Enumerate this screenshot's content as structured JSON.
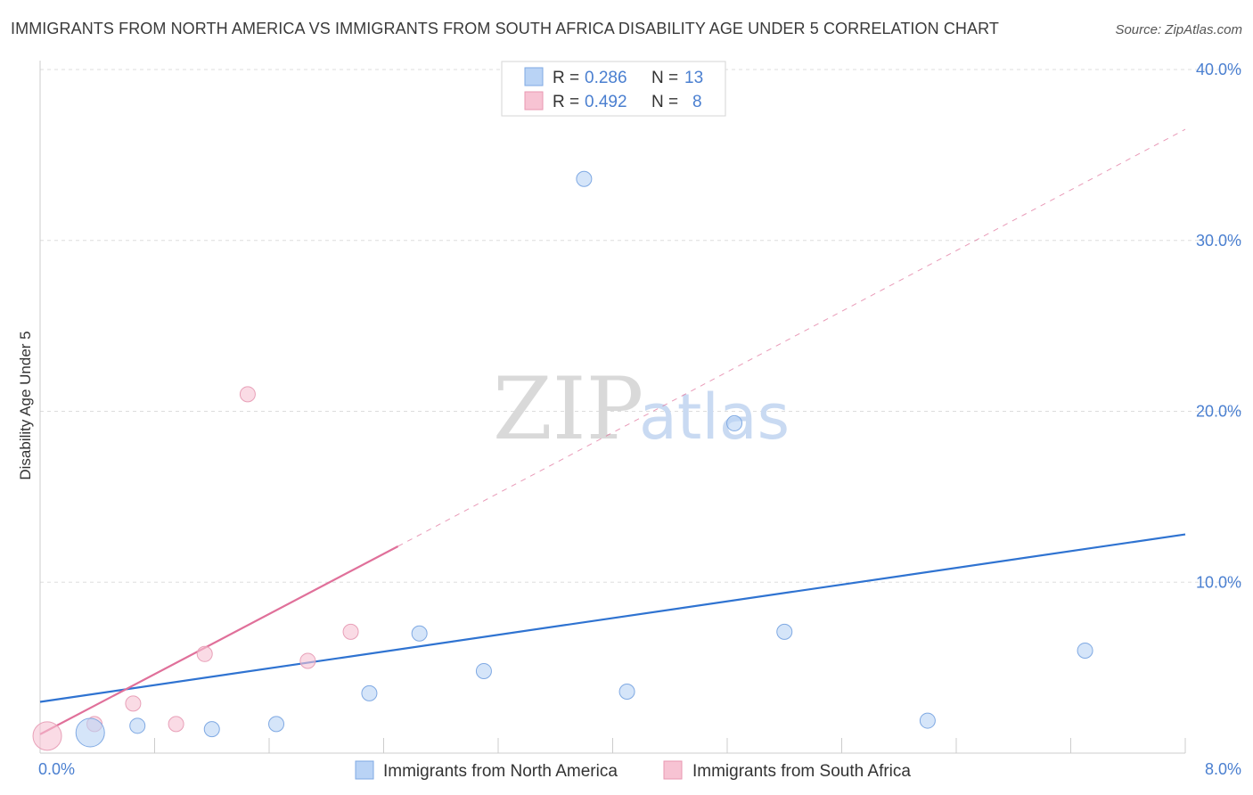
{
  "header": {
    "title": "IMMIGRANTS FROM NORTH AMERICA VS IMMIGRANTS FROM SOUTH AFRICA DISABILITY AGE UNDER 5 CORRELATION CHART",
    "source": "Source: ZipAtlas.com"
  },
  "watermark": {
    "zip": "ZIP",
    "atlas": "atlas"
  },
  "legend": {
    "r_label": "R =",
    "n_label": "N =",
    "rows": [
      {
        "r": "0.286",
        "n": "13"
      },
      {
        "r": "0.492",
        "n": "8"
      }
    ]
  },
  "colors": {
    "north_america_fill": "#b9d3f5",
    "north_america_line": "#2f73d1",
    "south_africa_fill": "#f7c3d3",
    "south_africa_line": "#e0709a",
    "grid": "#dddddd",
    "tick_text": "#4a7fd0"
  },
  "chart_data": {
    "type": "scatter",
    "title": "IMMIGRANTS FROM NORTH AMERICA VS IMMIGRANTS FROM SOUTH AFRICA DISABILITY AGE UNDER 5 CORRELATION CHART",
    "xlabel": "",
    "ylabel": "Disability Age Under 5",
    "xlim": [
      0,
      8
    ],
    "ylim": [
      0,
      40
    ],
    "x_tick_labels": [
      "0.0%",
      "8.0%"
    ],
    "y_ticks": [
      10,
      20,
      30,
      40
    ],
    "y_tick_labels": [
      "10.0%",
      "20.0%",
      "30.0%",
      "40.0%"
    ],
    "series": [
      {
        "name": "Immigrants from North America",
        "points": [
          {
            "x": 0.35,
            "y": 1.2,
            "size": "large"
          },
          {
            "x": 0.68,
            "y": 1.6
          },
          {
            "x": 1.2,
            "y": 1.4
          },
          {
            "x": 1.65,
            "y": 1.7
          },
          {
            "x": 2.3,
            "y": 3.5
          },
          {
            "x": 2.65,
            "y": 7.0
          },
          {
            "x": 3.1,
            "y": 4.8
          },
          {
            "x": 3.8,
            "y": 33.6
          },
          {
            "x": 4.1,
            "y": 3.6
          },
          {
            "x": 4.85,
            "y": 19.3
          },
          {
            "x": 5.2,
            "y": 7.1
          },
          {
            "x": 6.2,
            "y": 1.9
          },
          {
            "x": 7.3,
            "y": 6.0
          }
        ],
        "trend": {
          "x1": 0.0,
          "y1": 3.0,
          "x2": 8.0,
          "y2": 12.8
        }
      },
      {
        "name": "Immigrants from South Africa",
        "points": [
          {
            "x": 0.05,
            "y": 1.0,
            "size": "large"
          },
          {
            "x": 0.38,
            "y": 1.7
          },
          {
            "x": 0.65,
            "y": 2.9
          },
          {
            "x": 0.95,
            "y": 1.7
          },
          {
            "x": 1.15,
            "y": 5.8
          },
          {
            "x": 1.45,
            "y": 21.0
          },
          {
            "x": 1.87,
            "y": 5.4
          },
          {
            "x": 2.17,
            "y": 7.1
          }
        ],
        "trend": {
          "x1": 0.0,
          "y1": 1.1,
          "x2": 2.5,
          "y2": 12.1
        },
        "trend_extension": {
          "x1": 2.5,
          "y1": 12.1,
          "x2": 8.0,
          "y2": 36.5
        }
      }
    ]
  },
  "bottom_legend": [
    {
      "label": "Immigrants from North America"
    },
    {
      "label": "Immigrants from South Africa"
    }
  ]
}
